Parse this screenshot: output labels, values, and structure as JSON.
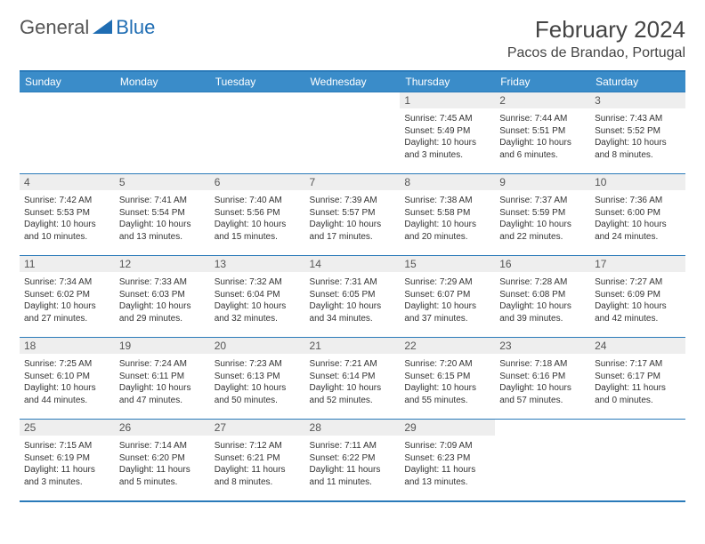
{
  "brand": {
    "text1": "General",
    "text2": "Blue",
    "color_gray": "#6a6a6a",
    "color_blue": "#1f6db3"
  },
  "title": "February 2024",
  "location": "Pacos de Brandao, Portugal",
  "header_bg": "#3a8cc9",
  "border_color": "#2a7ab9",
  "daynum_bg": "#eeeeee",
  "weekdays": [
    "Sunday",
    "Monday",
    "Tuesday",
    "Wednesday",
    "Thursday",
    "Friday",
    "Saturday"
  ],
  "weeks": [
    [
      null,
      null,
      null,
      null,
      {
        "d": "1",
        "sr": "7:45 AM",
        "ss": "5:49 PM",
        "dl": "10 hours and 3 minutes."
      },
      {
        "d": "2",
        "sr": "7:44 AM",
        "ss": "5:51 PM",
        "dl": "10 hours and 6 minutes."
      },
      {
        "d": "3",
        "sr": "7:43 AM",
        "ss": "5:52 PM",
        "dl": "10 hours and 8 minutes."
      }
    ],
    [
      {
        "d": "4",
        "sr": "7:42 AM",
        "ss": "5:53 PM",
        "dl": "10 hours and 10 minutes."
      },
      {
        "d": "5",
        "sr": "7:41 AM",
        "ss": "5:54 PM",
        "dl": "10 hours and 13 minutes."
      },
      {
        "d": "6",
        "sr": "7:40 AM",
        "ss": "5:56 PM",
        "dl": "10 hours and 15 minutes."
      },
      {
        "d": "7",
        "sr": "7:39 AM",
        "ss": "5:57 PM",
        "dl": "10 hours and 17 minutes."
      },
      {
        "d": "8",
        "sr": "7:38 AM",
        "ss": "5:58 PM",
        "dl": "10 hours and 20 minutes."
      },
      {
        "d": "9",
        "sr": "7:37 AM",
        "ss": "5:59 PM",
        "dl": "10 hours and 22 minutes."
      },
      {
        "d": "10",
        "sr": "7:36 AM",
        "ss": "6:00 PM",
        "dl": "10 hours and 24 minutes."
      }
    ],
    [
      {
        "d": "11",
        "sr": "7:34 AM",
        "ss": "6:02 PM",
        "dl": "10 hours and 27 minutes."
      },
      {
        "d": "12",
        "sr": "7:33 AM",
        "ss": "6:03 PM",
        "dl": "10 hours and 29 minutes."
      },
      {
        "d": "13",
        "sr": "7:32 AM",
        "ss": "6:04 PM",
        "dl": "10 hours and 32 minutes."
      },
      {
        "d": "14",
        "sr": "7:31 AM",
        "ss": "6:05 PM",
        "dl": "10 hours and 34 minutes."
      },
      {
        "d": "15",
        "sr": "7:29 AM",
        "ss": "6:07 PM",
        "dl": "10 hours and 37 minutes."
      },
      {
        "d": "16",
        "sr": "7:28 AM",
        "ss": "6:08 PM",
        "dl": "10 hours and 39 minutes."
      },
      {
        "d": "17",
        "sr": "7:27 AM",
        "ss": "6:09 PM",
        "dl": "10 hours and 42 minutes."
      }
    ],
    [
      {
        "d": "18",
        "sr": "7:25 AM",
        "ss": "6:10 PM",
        "dl": "10 hours and 44 minutes."
      },
      {
        "d": "19",
        "sr": "7:24 AM",
        "ss": "6:11 PM",
        "dl": "10 hours and 47 minutes."
      },
      {
        "d": "20",
        "sr": "7:23 AM",
        "ss": "6:13 PM",
        "dl": "10 hours and 50 minutes."
      },
      {
        "d": "21",
        "sr": "7:21 AM",
        "ss": "6:14 PM",
        "dl": "10 hours and 52 minutes."
      },
      {
        "d": "22",
        "sr": "7:20 AM",
        "ss": "6:15 PM",
        "dl": "10 hours and 55 minutes."
      },
      {
        "d": "23",
        "sr": "7:18 AM",
        "ss": "6:16 PM",
        "dl": "10 hours and 57 minutes."
      },
      {
        "d": "24",
        "sr": "7:17 AM",
        "ss": "6:17 PM",
        "dl": "11 hours and 0 minutes."
      }
    ],
    [
      {
        "d": "25",
        "sr": "7:15 AM",
        "ss": "6:19 PM",
        "dl": "11 hours and 3 minutes."
      },
      {
        "d": "26",
        "sr": "7:14 AM",
        "ss": "6:20 PM",
        "dl": "11 hours and 5 minutes."
      },
      {
        "d": "27",
        "sr": "7:12 AM",
        "ss": "6:21 PM",
        "dl": "11 hours and 8 minutes."
      },
      {
        "d": "28",
        "sr": "7:11 AM",
        "ss": "6:22 PM",
        "dl": "11 hours and 11 minutes."
      },
      {
        "d": "29",
        "sr": "7:09 AM",
        "ss": "6:23 PM",
        "dl": "11 hours and 13 minutes."
      },
      null,
      null
    ]
  ],
  "labels": {
    "sunrise": "Sunrise: ",
    "sunset": "Sunset: ",
    "daylight": "Daylight: "
  }
}
